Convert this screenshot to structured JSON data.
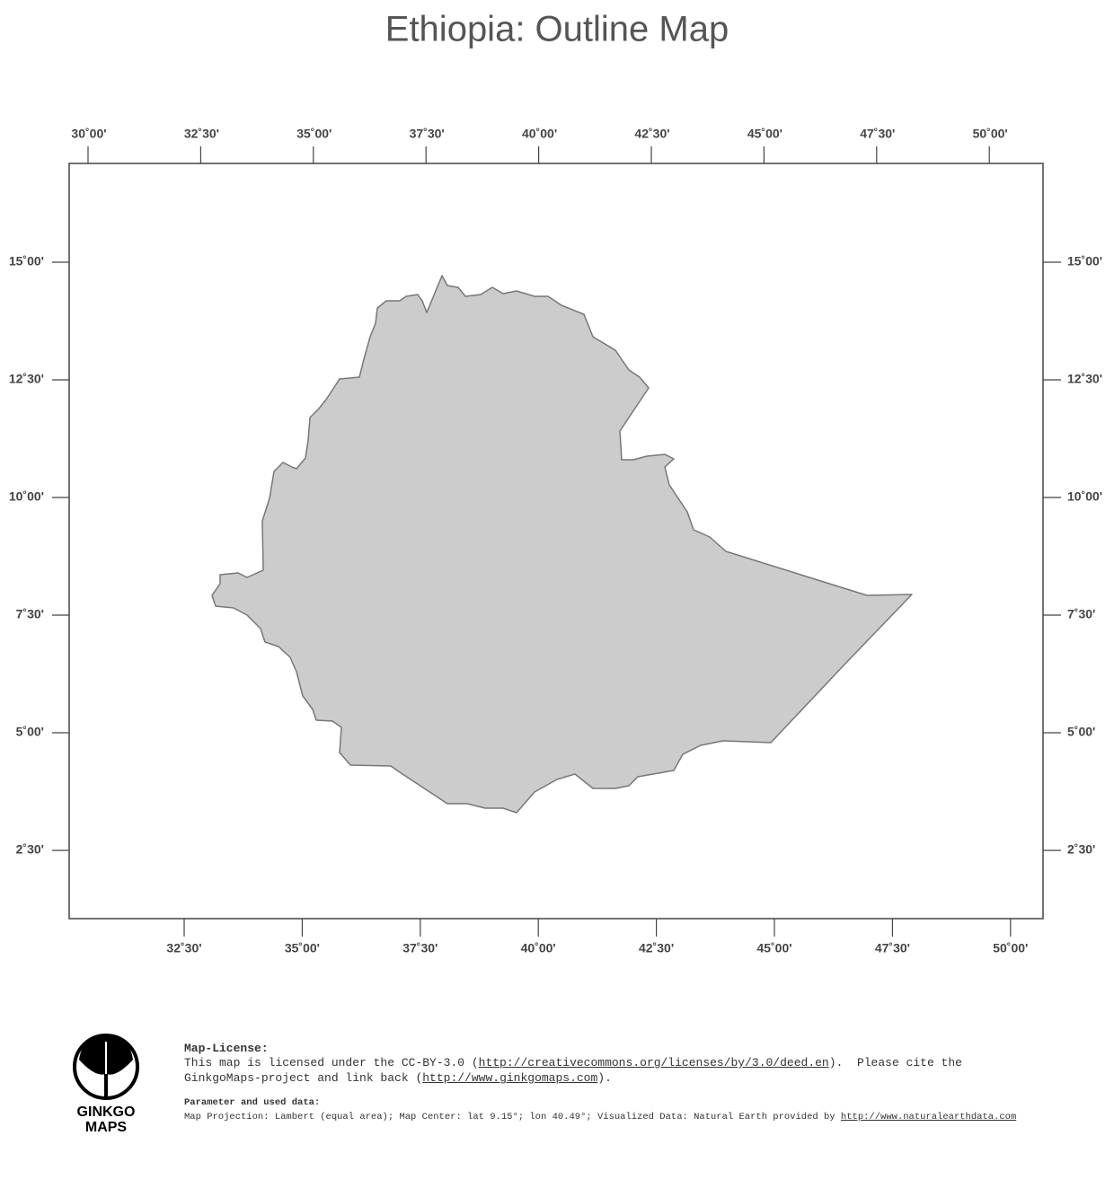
{
  "title": "Ethiopia: Outline Map",
  "top_labels": [
    "30˚00'",
    "32˚30'",
    "35˚00'",
    "37˚30'",
    "40˚00'",
    "42˚30'",
    "45˚00'",
    "47˚30'",
    "50˚00'"
  ],
  "bottom_labels": [
    "32˚30'",
    "35˚00'",
    "37˚30'",
    "40˚00'",
    "42˚30'",
    "45˚00'",
    "47˚30'",
    "50˚00'"
  ],
  "left_labels": [
    "15˚00'",
    "12˚30'",
    "10˚00'",
    "7˚30'",
    "5˚00'",
    "2˚30'"
  ],
  "right_labels": [
    "15˚00'",
    "12˚30'",
    "10˚00'",
    "7˚30'",
    "5˚00'",
    "2˚30'"
  ],
  "logo": {
    "line1": "GINKGO",
    "line2": "MAPS"
  },
  "license": {
    "heading": "Map-License:",
    "line1_text": "This map is licensed under the CC-BY-3.0 (",
    "line1_link": "http://creativecommons.org/licenses/by/3.0/deed.en",
    "line1_end": ").  Please cite the",
    "line2_text": "GinkgoMaps-project and link back (",
    "line2_link": "http://www.ginkgomaps.com",
    "line2_end": ")."
  },
  "parameters": {
    "heading": "Parameter and used data:",
    "text": "Map Projection: Lambert (equal area); Map Center: lat 9.15°; lon 40.49°; Visualized Data: Natural Earth provided by ",
    "link": "http://www.naturalearthdata.com"
  }
}
